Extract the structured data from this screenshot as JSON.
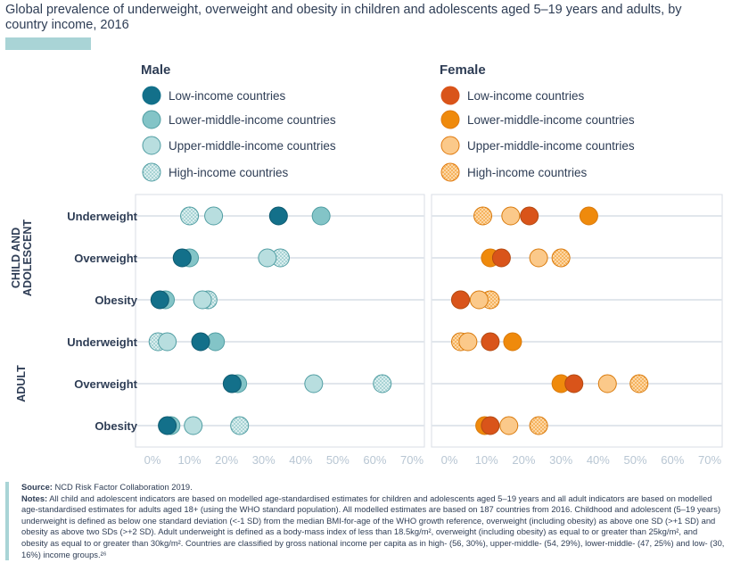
{
  "title": "Global prevalence of underweight, overweight and obesity in children and adolescents aged 5–19 years and adults, by country income, 2016",
  "colors": {
    "male": [
      "#13708a",
      "#83c4c7",
      "#b8dedf",
      "#d9eeee"
    ],
    "female": [
      "#d9541a",
      "#ef8a0c",
      "#fbc98a",
      "#fcd7a6"
    ],
    "grid": "#e1e6ec",
    "panel_border": "#d8dee5"
  },
  "chart_data": {
    "type": "scatter",
    "x_ticks": [
      "0%",
      "10%",
      "20%",
      "30%",
      "40%",
      "50%",
      "60%",
      "70%"
    ],
    "xlim": [
      0,
      70
    ],
    "groups": [
      "CHILD AND ADOLESCENT",
      "ADULT"
    ],
    "rows": [
      "Underweight",
      "Overweight",
      "Obesity",
      "Underweight",
      "Overweight",
      "Obesity"
    ],
    "panels": [
      {
        "title": "Male",
        "series": [
          {
            "name": "Low-income countries",
            "values": [
              34,
              8,
              2,
              13,
              21.5,
              4
            ]
          },
          {
            "name": "Lower-middle-income countries",
            "values": [
              45.5,
              10,
              3.5,
              17,
              23,
              5
            ]
          },
          {
            "name": "Upper-middle-income countries",
            "values": [
              16.5,
              31,
              13.5,
              4,
              43.5,
              11
            ]
          },
          {
            "name": "High-income countries",
            "values": [
              10,
              34.5,
              15,
              1.5,
              62,
              23.5
            ]
          }
        ]
      },
      {
        "title": "Female",
        "series": [
          {
            "name": "Low-income countries",
            "values": [
              21.5,
              14,
              3,
              11,
              33.5,
              11
            ]
          },
          {
            "name": "Lower-middle-income countries",
            "values": [
              37.5,
              11,
              3,
              17,
              30,
              9.5
            ]
          },
          {
            "name": "Upper-middle-income countries",
            "values": [
              16.5,
              24,
              8,
              5,
              42.5,
              16
            ]
          },
          {
            "name": "High-income countries",
            "values": [
              9,
              30,
              11,
              3,
              51,
              24
            ]
          }
        ]
      }
    ]
  },
  "notes": {
    "source_label": "Source:",
    "source_text": "NCD Risk Factor Collaboration 2019.",
    "notes_label": "Notes:",
    "notes_text": "All child and adolescent indicators are based on modelled age-standardised estimates for children and adolescents aged 5–19 years and all adult indicators are based on modelled age-standardised estimates for adults aged 18+ (using the WHO standard population). All modelled estimates are based on 187 countries from 2016. Childhood and adolescent (5–19 years) underweight is defined as below one standard deviation (<-1 SD) from the median BMI-for-age of the WHO growth reference, overweight (including obesity) as above one SD (>+1 SD) and obesity as above two SDs (>+2 SD). Adult underweight is defined as a body-mass index of less than 18.5kg/m², overweight (including obesity) as equal to or greater than 25kg/m², and obesity as equal to or greater than 30kg/m². Countries are classified by gross national income per capita as in high- (56, 30%), upper-middle- (54, 29%), lower-middle- (47, 25%) and low- (30, 16%) income groups.²⁶"
  }
}
